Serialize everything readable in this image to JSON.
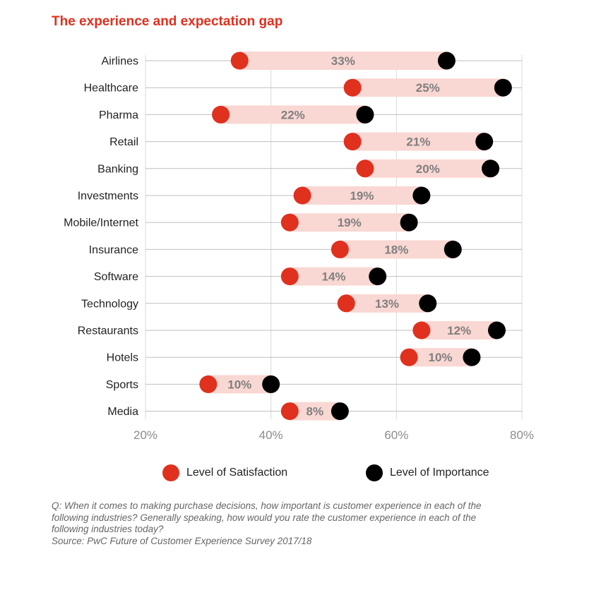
{
  "title": "The experience and expectation gap",
  "chart_data": {
    "type": "dumbbell",
    "title": "The experience and expectation gap",
    "xlim": [
      20,
      80
    ],
    "x_ticks": [
      20,
      40,
      60,
      80
    ],
    "x_tick_labels": [
      "20%",
      "40%",
      "60%",
      "80%"
    ],
    "grid": true,
    "categories": [
      "Airlines",
      "Healthcare",
      "Pharma",
      "Retail",
      "Banking",
      "Investments",
      "Mobile/Internet",
      "Insurance",
      "Software",
      "Technology",
      "Restaurants",
      "Hotels",
      "Sports",
      "Media"
    ],
    "series": [
      {
        "name": "Level of Satisfaction",
        "color": "#e0301e",
        "values": [
          35,
          53,
          32,
          53,
          55,
          45,
          43,
          51,
          43,
          52,
          64,
          62,
          30,
          43
        ]
      },
      {
        "name": "Level of Importance",
        "color": "#000000",
        "values": [
          68,
          77,
          55,
          74,
          75,
          64,
          62,
          69,
          57,
          65,
          76,
          72,
          40,
          51
        ]
      }
    ],
    "gap_labels": [
      "33%",
      "25%",
      "22%",
      "21%",
      "20%",
      "19%",
      "19%",
      "18%",
      "14%",
      "13%",
      "12%",
      "10%",
      "10%",
      "8%"
    ],
    "band_color": "#f9d7d3",
    "legend_position": "bottom"
  },
  "legend": {
    "satisfaction_label": "Level of Satisfaction",
    "importance_label": "Level of Importance",
    "satisfaction_color": "#e0301e",
    "importance_color": "#000000"
  },
  "note": {
    "question": "Q: When it comes to making purchase decisions, how important is customer experience in each of the following industries? Generally speaking, how would you rate the customer experience in each of the following industries today?",
    "source": "Source: PwC Future of Customer Experience Survey 2017/18"
  }
}
